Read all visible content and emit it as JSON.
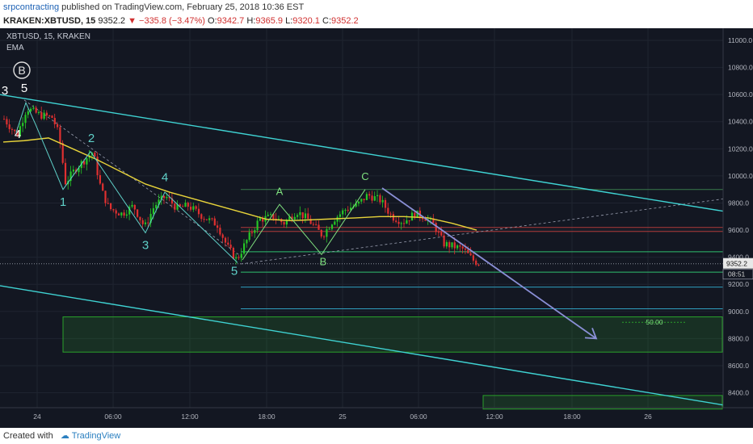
{
  "header": {
    "author": "srpcontracting",
    "published_text": " published on TradingView.com, February 25, 2018 10:36 EST",
    "symbol": "KRAKEN:XBTUSD, 15",
    "last": "9352.2",
    "change": "▼ −335.8 (−3.47%)",
    "o_label": "O:",
    "o_value": "9342.7",
    "h_label": "H:",
    "h_value": "9365.9",
    "l_label": "L:",
    "l_value": "9320.1",
    "c_label": "C:",
    "c_value": "9352.2"
  },
  "chart_header": {
    "title": "XBTUSD, 15, KRAKEN",
    "indicator": "EMA",
    "badge": "B"
  },
  "footer": {
    "created_with": "Created with",
    "brand": "TradingView"
  },
  "colors": {
    "background": "#131722",
    "up": "#26c726",
    "down": "#e03030",
    "ema": "#e8d43a",
    "channel": "#3fd3d3",
    "wave": "#5fd0c8",
    "abc": "#7fe07f",
    "arrow": "#8a8fd6",
    "zone": "#2aa02a"
  },
  "chart_data": {
    "type": "candlestick",
    "y_axis": {
      "ticks": [
        8400,
        8600,
        8800,
        9000,
        9200,
        9400,
        9600,
        9800,
        10000,
        10200,
        10400,
        10600,
        10800,
        11000
      ],
      "labels": [
        "8400.0",
        "8600.0",
        "8800.0",
        "9000.0",
        "9200.0",
        "9400.0",
        "9600.0",
        "9800.0",
        "10000.0",
        "10200.0",
        "10400.0",
        "10600.0",
        "10800.0",
        "11000.0"
      ]
    },
    "x_axis": {
      "labels": [
        "24",
        "06:00",
        "12:00",
        "18:00",
        "25",
        "06:00",
        "12:00",
        "18:00",
        "26"
      ]
    },
    "last_price": "9352.2",
    "countdown": "08:51",
    "waves": {
      "labels": [
        "3",
        "5",
        "4",
        "1",
        "2",
        "3",
        "4",
        "5"
      ],
      "abc": [
        "A",
        "B",
        "C"
      ]
    },
    "fib_label": "50.00"
  }
}
